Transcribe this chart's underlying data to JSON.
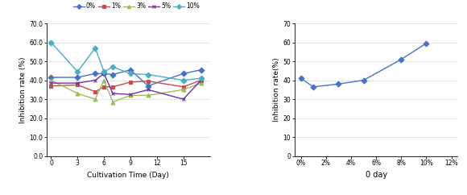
{
  "left_chart": {
    "x": [
      0,
      3,
      5,
      6,
      7,
      9,
      11,
      15,
      17
    ],
    "series": {
      "0%": [
        41.5,
        41.5,
        43.5,
        43.5,
        43.0,
        45.5,
        37.0,
        43.5,
        45.5
      ],
      "1%": [
        37.0,
        37.5,
        34.0,
        36.5,
        36.5,
        39.0,
        39.5,
        36.5,
        40.0
      ],
      "3%": [
        40.0,
        33.0,
        30.0,
        40.0,
        28.5,
        32.0,
        32.0,
        35.0,
        38.5
      ],
      "5%": [
        38.5,
        38.5,
        40.0,
        43.5,
        33.0,
        32.5,
        35.0,
        30.0,
        40.0
      ],
      "10%": [
        60.0,
        44.5,
        57.0,
        44.5,
        47.0,
        43.5,
        43.0,
        40.0,
        41.0
      ]
    },
    "colors": {
      "0%": "#4472C4",
      "1%": "#C0504D",
      "3%": "#9BBB59",
      "5%": "#7030A0",
      "10%": "#4BACC6"
    },
    "markers": {
      "0%": "D",
      "1%": "s",
      "3%": "^",
      "5%": "x",
      "10%": "D"
    },
    "xlabel": "Cultivation Time (Day)",
    "ylabel": "Inhibition rate (%)",
    "ylim": [
      0,
      70
    ],
    "yticks": [
      0,
      10,
      20,
      30,
      40,
      50,
      60,
      70
    ],
    "ytick_labels": [
      "0.0",
      "10.0",
      "20.0",
      "30.0",
      "40.0",
      "50.0",
      "60.0",
      "70.0"
    ],
    "xticks": [
      0,
      3,
      6,
      9,
      12,
      15
    ],
    "xlim": [
      -0.5,
      18
    ]
  },
  "right_chart": {
    "x_data": [
      0,
      1,
      3,
      5,
      8,
      10
    ],
    "values": [
      41.0,
      36.5,
      38.0,
      40.0,
      51.0,
      59.5
    ],
    "color": "#4472C4",
    "marker": "D",
    "xlabel": "0 day",
    "ylabel": "Inhibition rate(%)",
    "ylim": [
      0,
      70
    ],
    "yticks": [
      0,
      10,
      20,
      30,
      40,
      50,
      60,
      70
    ],
    "xtick_positions": [
      0,
      2,
      4,
      6,
      8,
      10,
      12
    ],
    "xtick_labels": [
      "0%",
      "2%",
      "4%",
      "6%",
      "8%",
      "10%",
      "12%"
    ],
    "xlim": [
      -0.5,
      12.5
    ]
  },
  "background_color": "#FFFFFF",
  "grid_color": "#D9D9D9"
}
